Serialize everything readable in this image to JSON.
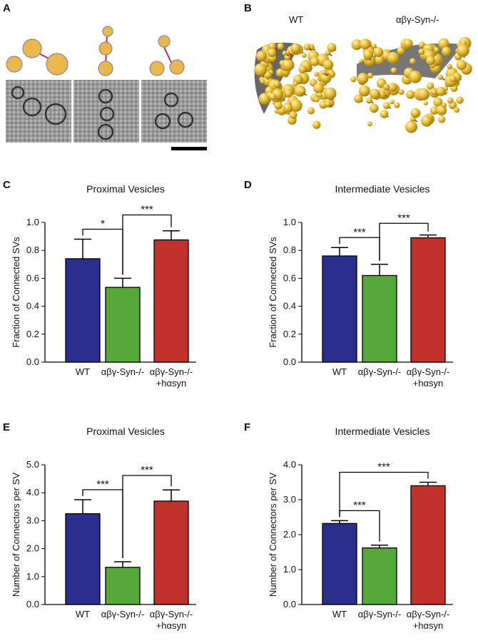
{
  "panel_labels": [
    "A",
    "B",
    "C",
    "D",
    "E",
    "F"
  ],
  "panel_b": {
    "labels": [
      "WT",
      "αβγ-Syn-/-"
    ]
  },
  "chart_data": [
    {
      "type": "bar",
      "title": "Proximal Vesicles",
      "ylabel": "Fraction of Connected SVs",
      "categories": [
        "WT",
        "αβγ-Syn-/-",
        "αβγ-Syn-/-\n+hαsyn"
      ],
      "colors": [
        "#2b2e8c",
        "#56a83a",
        "#c0322a"
      ],
      "values": [
        0.74,
        0.535,
        0.875
      ],
      "errors": [
        0.14,
        0.065,
        0.065
      ],
      "ylim": [
        0,
        1
      ],
      "yticks": [
        {
          "value": 0,
          "label": "0.0"
        },
        0.2,
        0.4,
        0.6,
        0.8,
        {
          "value": 1,
          "label": "1.0"
        }
      ],
      "annotations": [
        {
          "text": "*",
          "pair": [
            0,
            1
          ]
        },
        {
          "text": "***",
          "pair": [
            1,
            2
          ]
        }
      ]
    },
    {
      "type": "bar",
      "title": "Intermediate Vesicles",
      "ylabel": "Fraction of Connected SVs",
      "categories": [
        "WT",
        "αβγ-Syn-/-",
        "αβγ-Syn-/-\n+hαsyn"
      ],
      "colors": [
        "#2b2e8c",
        "#56a83a",
        "#c0322a"
      ],
      "values": [
        0.76,
        0.62,
        0.89
      ],
      "errors": [
        0.06,
        0.08,
        0.02
      ],
      "ylim": [
        0,
        1
      ],
      "yticks": [
        {
          "value": 0,
          "label": "0.0"
        },
        0.2,
        0.4,
        0.6,
        0.8,
        {
          "value": 1,
          "label": "1.0"
        }
      ],
      "annotations": [
        {
          "text": "***",
          "pair": [
            0,
            1
          ]
        },
        {
          "text": "***",
          "pair": [
            1,
            2
          ]
        }
      ]
    },
    {
      "type": "bar",
      "title": "Proximal Vesicles",
      "ylabel": "Number of Connectors per SV",
      "categories": [
        "WT",
        "αβγ-Syn-/-",
        "αβγ-Syn-/-\n+hαsyn"
      ],
      "colors": [
        "#2b2e8c",
        "#56a83a",
        "#c0322a"
      ],
      "values": [
        3.25,
        1.33,
        3.7
      ],
      "errors": [
        0.5,
        0.2,
        0.4
      ],
      "ylim": [
        0,
        5
      ],
      "yticks": [
        {
          "value": 0,
          "label": "0.0"
        },
        {
          "value": 1,
          "label": "1.0"
        },
        {
          "value": 2,
          "label": "2.0"
        },
        {
          "value": 3,
          "label": "3.0"
        },
        {
          "value": 4,
          "label": "4.0"
        },
        {
          "value": 5,
          "label": "5.0"
        }
      ],
      "annotations": [
        {
          "text": "***",
          "pair": [
            0,
            1
          ]
        },
        {
          "text": "***",
          "pair": [
            1,
            2
          ]
        }
      ]
    },
    {
      "type": "bar",
      "title": "Intermediate Vesicles",
      "ylabel": "Number of Connectors per SV",
      "categories": [
        "WT",
        "αβγ-Syn-/-",
        "αβγ-Syn-/-\n+hαsyn"
      ],
      "colors": [
        "#2b2e8c",
        "#56a83a",
        "#c0322a"
      ],
      "values": [
        2.32,
        1.62,
        3.4
      ],
      "errors": [
        0.08,
        0.08,
        0.1
      ],
      "ylim": [
        0,
        4
      ],
      "yticks": [
        {
          "value": 0,
          "label": "0.0"
        },
        {
          "value": 1,
          "label": "1.0"
        },
        {
          "value": 2,
          "label": "2.0"
        },
        {
          "value": 3,
          "label": "3.0"
        },
        {
          "value": 4,
          "label": "4.0"
        }
      ],
      "annotations": [
        {
          "text": "***",
          "pair": [
            0,
            1
          ]
        },
        {
          "text": "***",
          "pair": [
            0,
            2
          ]
        }
      ]
    }
  ]
}
